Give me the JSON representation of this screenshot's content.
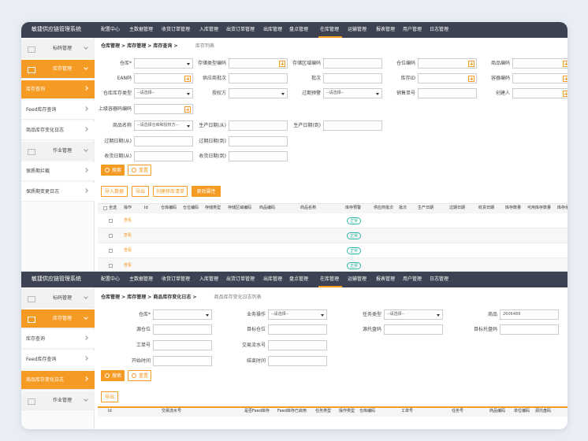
{
  "screens": [
    {
      "header": {
        "title": "敏捷供应链管理系统",
        "nav": [
          {
            "label": "配置中心"
          },
          {
            "label": "主数据管理"
          },
          {
            "label": "收货订单管理"
          },
          {
            "label": "入库管理"
          },
          {
            "label": "出货订单管理"
          },
          {
            "label": "出库管理"
          },
          {
            "label": "盘点管理"
          },
          {
            "label": "在库管理",
            "active": true
          },
          {
            "label": "运输管理"
          },
          {
            "label": "报表管理"
          },
          {
            "label": "用户管理"
          },
          {
            "label": "日志管理"
          }
        ]
      },
      "sidebar": [
        {
          "label": "标码管理",
          "level": 1
        },
        {
          "label": "库存管理",
          "level": 1,
          "active": true
        },
        {
          "label": "库存查询",
          "level": 2,
          "active": true
        },
        {
          "label": "Feed库存查询",
          "level": 2
        },
        {
          "label": "商品库存变化日志",
          "level": 2
        },
        {
          "label": "作业管理",
          "level": 1
        },
        {
          "label": "保质期拦截",
          "level": 2
        },
        {
          "label": "保质期变更日志",
          "level": 2
        }
      ],
      "breadcrumb": {
        "path": "仓库管理 > 库存管理 > 库存查询 >",
        "current": "库存列表"
      },
      "form": [
        [
          {
            "label": "仓库*",
            "kind": "select"
          },
          {
            "label": "存储类型编码",
            "kind": "input-add"
          },
          {
            "label": "存储区域编码",
            "kind": "input"
          },
          {
            "label": "仓位编码",
            "kind": "input-add"
          },
          {
            "label": "商品编码",
            "kind": "input-add"
          }
        ],
        [
          {
            "label": "EAN码",
            "kind": "input-add"
          },
          {
            "label": "供应商批次",
            "kind": "input"
          },
          {
            "label": "批次",
            "kind": "input"
          },
          {
            "label": "库存ID",
            "kind": "input-add"
          },
          {
            "label": "容器编码",
            "kind": "input-add"
          }
        ],
        [
          {
            "label": "仓库库存类型",
            "kind": "select",
            "value": "--请选择--"
          },
          {
            "label": "授权方",
            "kind": "select"
          },
          {
            "label": "过期预警",
            "kind": "select",
            "value": "--请选择--"
          },
          {
            "label": "销售单号",
            "kind": "input"
          },
          {
            "label": "创建人",
            "kind": "input-add"
          }
        ],
        [
          {
            "label": "上级容器码编码",
            "kind": "input-add"
          }
        ],
        [
          {
            "label": "商品名称",
            "kind": "select",
            "value": "--请选择仓库和授权方--"
          },
          {
            "label": "生产日期(从)",
            "kind": "input"
          },
          {
            "label": "生产日期(到)",
            "kind": "input"
          }
        ],
        [
          {
            "label": "过期日期(从)",
            "kind": "input"
          },
          {
            "label": "过期日期(到)",
            "kind": "input"
          }
        ],
        [
          {
            "label": "收货日期(从)",
            "kind": "input"
          },
          {
            "label": "收货日期(到)",
            "kind": "input"
          }
        ]
      ],
      "buttons": [
        "搜索",
        "重置"
      ],
      "actions": [
        {
          "label": "导入数据"
        },
        {
          "label": "导出"
        },
        {
          "label": "创建移库清单"
        },
        {
          "label": "更改属性",
          "primary": true
        }
      ],
      "table": {
        "columns": [
          "全选",
          "操作",
          "Id",
          "仓库编码",
          "仓位编码",
          "存储类型",
          "存储区域编码",
          "商品编码",
          "商品名称",
          "库存预警",
          "供应商批次",
          "批次",
          "生产日期",
          "过期日期",
          "收货日期",
          "库存数量",
          "可用库存数量",
          "库存余额"
        ],
        "rows": [
          {
            "action": "查看",
            "status": "正常"
          },
          {
            "action": "查看",
            "status": "正常"
          },
          {
            "action": "查看",
            "status": "正常"
          },
          {
            "action": "查看",
            "status": "正常"
          }
        ]
      }
    },
    {
      "header": {
        "title": "敏捷供应链管理系统",
        "nav": [
          {
            "label": "配置中心"
          },
          {
            "label": "主数据管理"
          },
          {
            "label": "收货订单管理"
          },
          {
            "label": "入库管理"
          },
          {
            "label": "出货订单管理"
          },
          {
            "label": "出库管理"
          },
          {
            "label": "盘点管理"
          },
          {
            "label": "在库管理",
            "active": true
          },
          {
            "label": "运输管理"
          },
          {
            "label": "报表管理"
          },
          {
            "label": "用户管理"
          },
          {
            "label": "日志管理"
          }
        ]
      },
      "sidebar": [
        {
          "label": "标码管理",
          "level": 1
        },
        {
          "label": "库存管理",
          "level": 1,
          "active": true
        },
        {
          "label": "库存查询",
          "level": 2
        },
        {
          "label": "Feed库存查询",
          "level": 2
        },
        {
          "label": "商品库存变化日志",
          "level": 2,
          "active": true
        },
        {
          "label": "作业管理",
          "level": 1
        }
      ],
      "breadcrumb": {
        "path": "仓库管理 > 库存管理 > 商品库存变化日志 >",
        "current": "商品库存变化日志列表"
      },
      "form": [
        [
          {
            "label": "仓库*",
            "kind": "select"
          },
          {
            "label": "业务操作",
            "kind": "select",
            "value": "--请选择--"
          },
          {
            "label": "任务类型",
            "kind": "select",
            "value": "--请选择--"
          },
          {
            "label": "商品",
            "kind": "input",
            "value": "2606489"
          }
        ],
        [
          {
            "label": "源仓位",
            "kind": "input"
          },
          {
            "label": "目标仓位",
            "kind": "input"
          },
          {
            "label": "源托盘码",
            "kind": "input"
          },
          {
            "label": "目标托盘码",
            "kind": "input"
          }
        ],
        [
          {
            "label": "工单号",
            "kind": "input"
          },
          {
            "label": "交易流水号",
            "kind": "input"
          }
        ],
        [
          {
            "label": "开始时间",
            "kind": "input"
          },
          {
            "label": "结束时间",
            "kind": "input"
          }
        ]
      ],
      "buttons": [
        "搜索",
        "重置"
      ],
      "actions": [
        {
          "label": "导出"
        }
      ],
      "table": {
        "columns": [
          "Id",
          "交易流水号",
          "是否Feed库存",
          "Feed库存已启用",
          "任务类型",
          "操作类型",
          "仓库编码",
          "工单号",
          "任务号",
          "商品编码",
          "单位编码",
          "源托盘码"
        ],
        "rows": []
      }
    }
  ]
}
